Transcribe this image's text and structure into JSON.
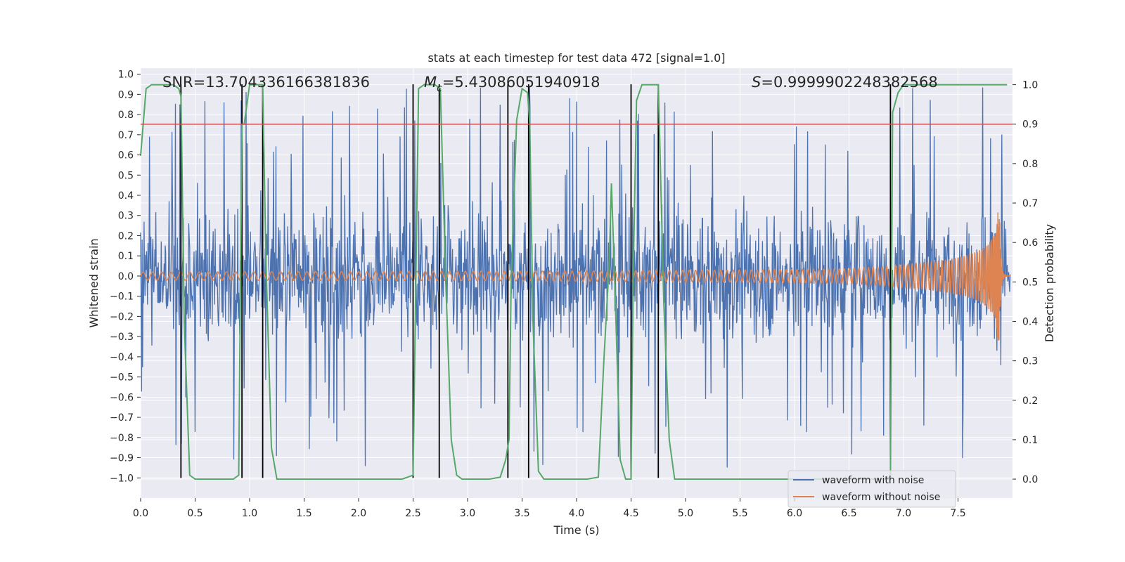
{
  "chart_data": {
    "type": "line",
    "title": "stats at each timestep for test data 472 [signal=1.0]",
    "xlabel": "Time (s)",
    "ylabel": "Whitened strain",
    "y2label": "Detection probability",
    "xlim": [
      0.0,
      8.0
    ],
    "ylim": [
      -1.1,
      1.03
    ],
    "y2lim": [
      -0.048,
      1.042
    ],
    "x_ticks": [
      "0.0",
      "0.5",
      "1.0",
      "1.5",
      "2.0",
      "2.5",
      "3.0",
      "3.5",
      "4.0",
      "4.5",
      "5.0",
      "5.5",
      "6.0",
      "6.5",
      "7.0",
      "7.5"
    ],
    "y_ticks": [
      "1.0",
      "0.9",
      "0.8",
      "0.7",
      "0.6",
      "0.5",
      "0.4",
      "0.3",
      "0.2",
      "0.1",
      "0.0",
      "−0.1",
      "−0.2",
      "−0.3",
      "−0.4",
      "−0.5",
      "−0.6",
      "−0.7",
      "−0.8",
      "−0.9",
      "−1.0"
    ],
    "y2_ticks": [
      "1.0",
      "0.9",
      "0.8",
      "0.7",
      "0.6",
      "0.5",
      "0.4",
      "0.3",
      "0.2",
      "0.1",
      "0.0"
    ],
    "grid": true,
    "legend_position": "bottom-right",
    "annotations": {
      "snr_text": "SNR=13.704336166381836",
      "mc_symbol": "M",
      "mc_sub": "c",
      "mc_value": "=5.43086051940918",
      "s_symbol": "S",
      "s_value": "=0.9999902248382568"
    },
    "series": [
      {
        "name": "waveform with noise",
        "color": "#4c72b0",
        "description": "whitened strain noise, amplitude ~0.5 with spikes to ~±0.95"
      },
      {
        "name": "waveform without noise",
        "color": "#dd8452",
        "description": "chirp: amplitude 0.02 at t=0 growing to ~0.32 at merger t=7.87 s, ringdown after"
      },
      {
        "name": "detection probability",
        "color": "#55a868",
        "x": [
          0.0,
          0.05,
          0.1,
          0.15,
          0.2,
          0.25,
          0.3,
          0.35,
          0.37,
          0.4,
          0.45,
          0.5,
          0.55,
          0.6,
          0.65,
          0.7,
          0.75,
          0.8,
          0.85,
          0.9,
          0.93,
          0.95,
          1.0,
          1.05,
          1.1,
          1.12,
          1.15,
          1.2,
          1.25,
          1.3,
          1.4,
          1.6,
          1.8,
          2.0,
          2.2,
          2.4,
          2.45,
          2.5,
          2.55,
          2.6,
          2.65,
          2.7,
          2.75,
          2.8,
          2.85,
          2.9,
          2.95,
          3.0,
          3.1,
          3.2,
          3.3,
          3.35,
          3.38,
          3.4,
          3.45,
          3.5,
          3.55,
          3.57,
          3.6,
          3.65,
          3.7,
          3.8,
          3.9,
          4.0,
          4.1,
          4.2,
          4.25,
          4.3,
          4.32,
          4.35,
          4.4,
          4.45,
          4.5,
          4.52,
          4.55,
          4.6,
          4.65,
          4.7,
          4.75,
          4.8,
          4.85,
          4.9,
          5.0,
          5.5,
          6.0,
          6.5,
          6.88,
          6.89,
          6.9,
          6.95,
          7.0,
          7.1,
          7.5,
          7.95
        ],
        "y": [
          0.82,
          0.99,
          1.0,
          1.0,
          1.0,
          1.0,
          1.0,
          0.99,
          0.97,
          0.4,
          0.01,
          0.0,
          0.0,
          0.0,
          0.0,
          0.0,
          0.0,
          0.0,
          0.0,
          0.01,
          0.9,
          0.9,
          1.0,
          1.0,
          1.0,
          1.0,
          0.55,
          0.08,
          0.0,
          0.0,
          0.0,
          0.0,
          0.0,
          0.0,
          0.0,
          0.0,
          0.005,
          0.01,
          0.99,
          1.0,
          1.0,
          1.0,
          0.99,
          0.5,
          0.1,
          0.01,
          0.0,
          0.0,
          0.0,
          0.0,
          0.005,
          0.05,
          0.1,
          0.5,
          0.91,
          0.99,
          0.98,
          0.9,
          0.4,
          0.02,
          0.0,
          0.0,
          0.0,
          0.0,
          0.0,
          0.005,
          0.3,
          0.55,
          0.75,
          0.5,
          0.05,
          0.0,
          0.0,
          0.52,
          0.96,
          1.0,
          1.0,
          1.0,
          1.0,
          0.45,
          0.1,
          0.0,
          0.0,
          0.0,
          0.0,
          0.0,
          0.0,
          0.5,
          0.93,
          0.98,
          1.0,
          1.0,
          1.0,
          1.0
        ]
      }
    ],
    "threshold_line": {
      "value": 0.9,
      "axis": "y2",
      "color": "#c44e52"
    },
    "event_markers": {
      "color": "#000000",
      "x": [
        0.37,
        0.93,
        1.12,
        2.5,
        2.74,
        3.37,
        3.56,
        4.5,
        4.75,
        6.88
      ],
      "ymin": -1.0,
      "ymax": 0.95
    }
  }
}
